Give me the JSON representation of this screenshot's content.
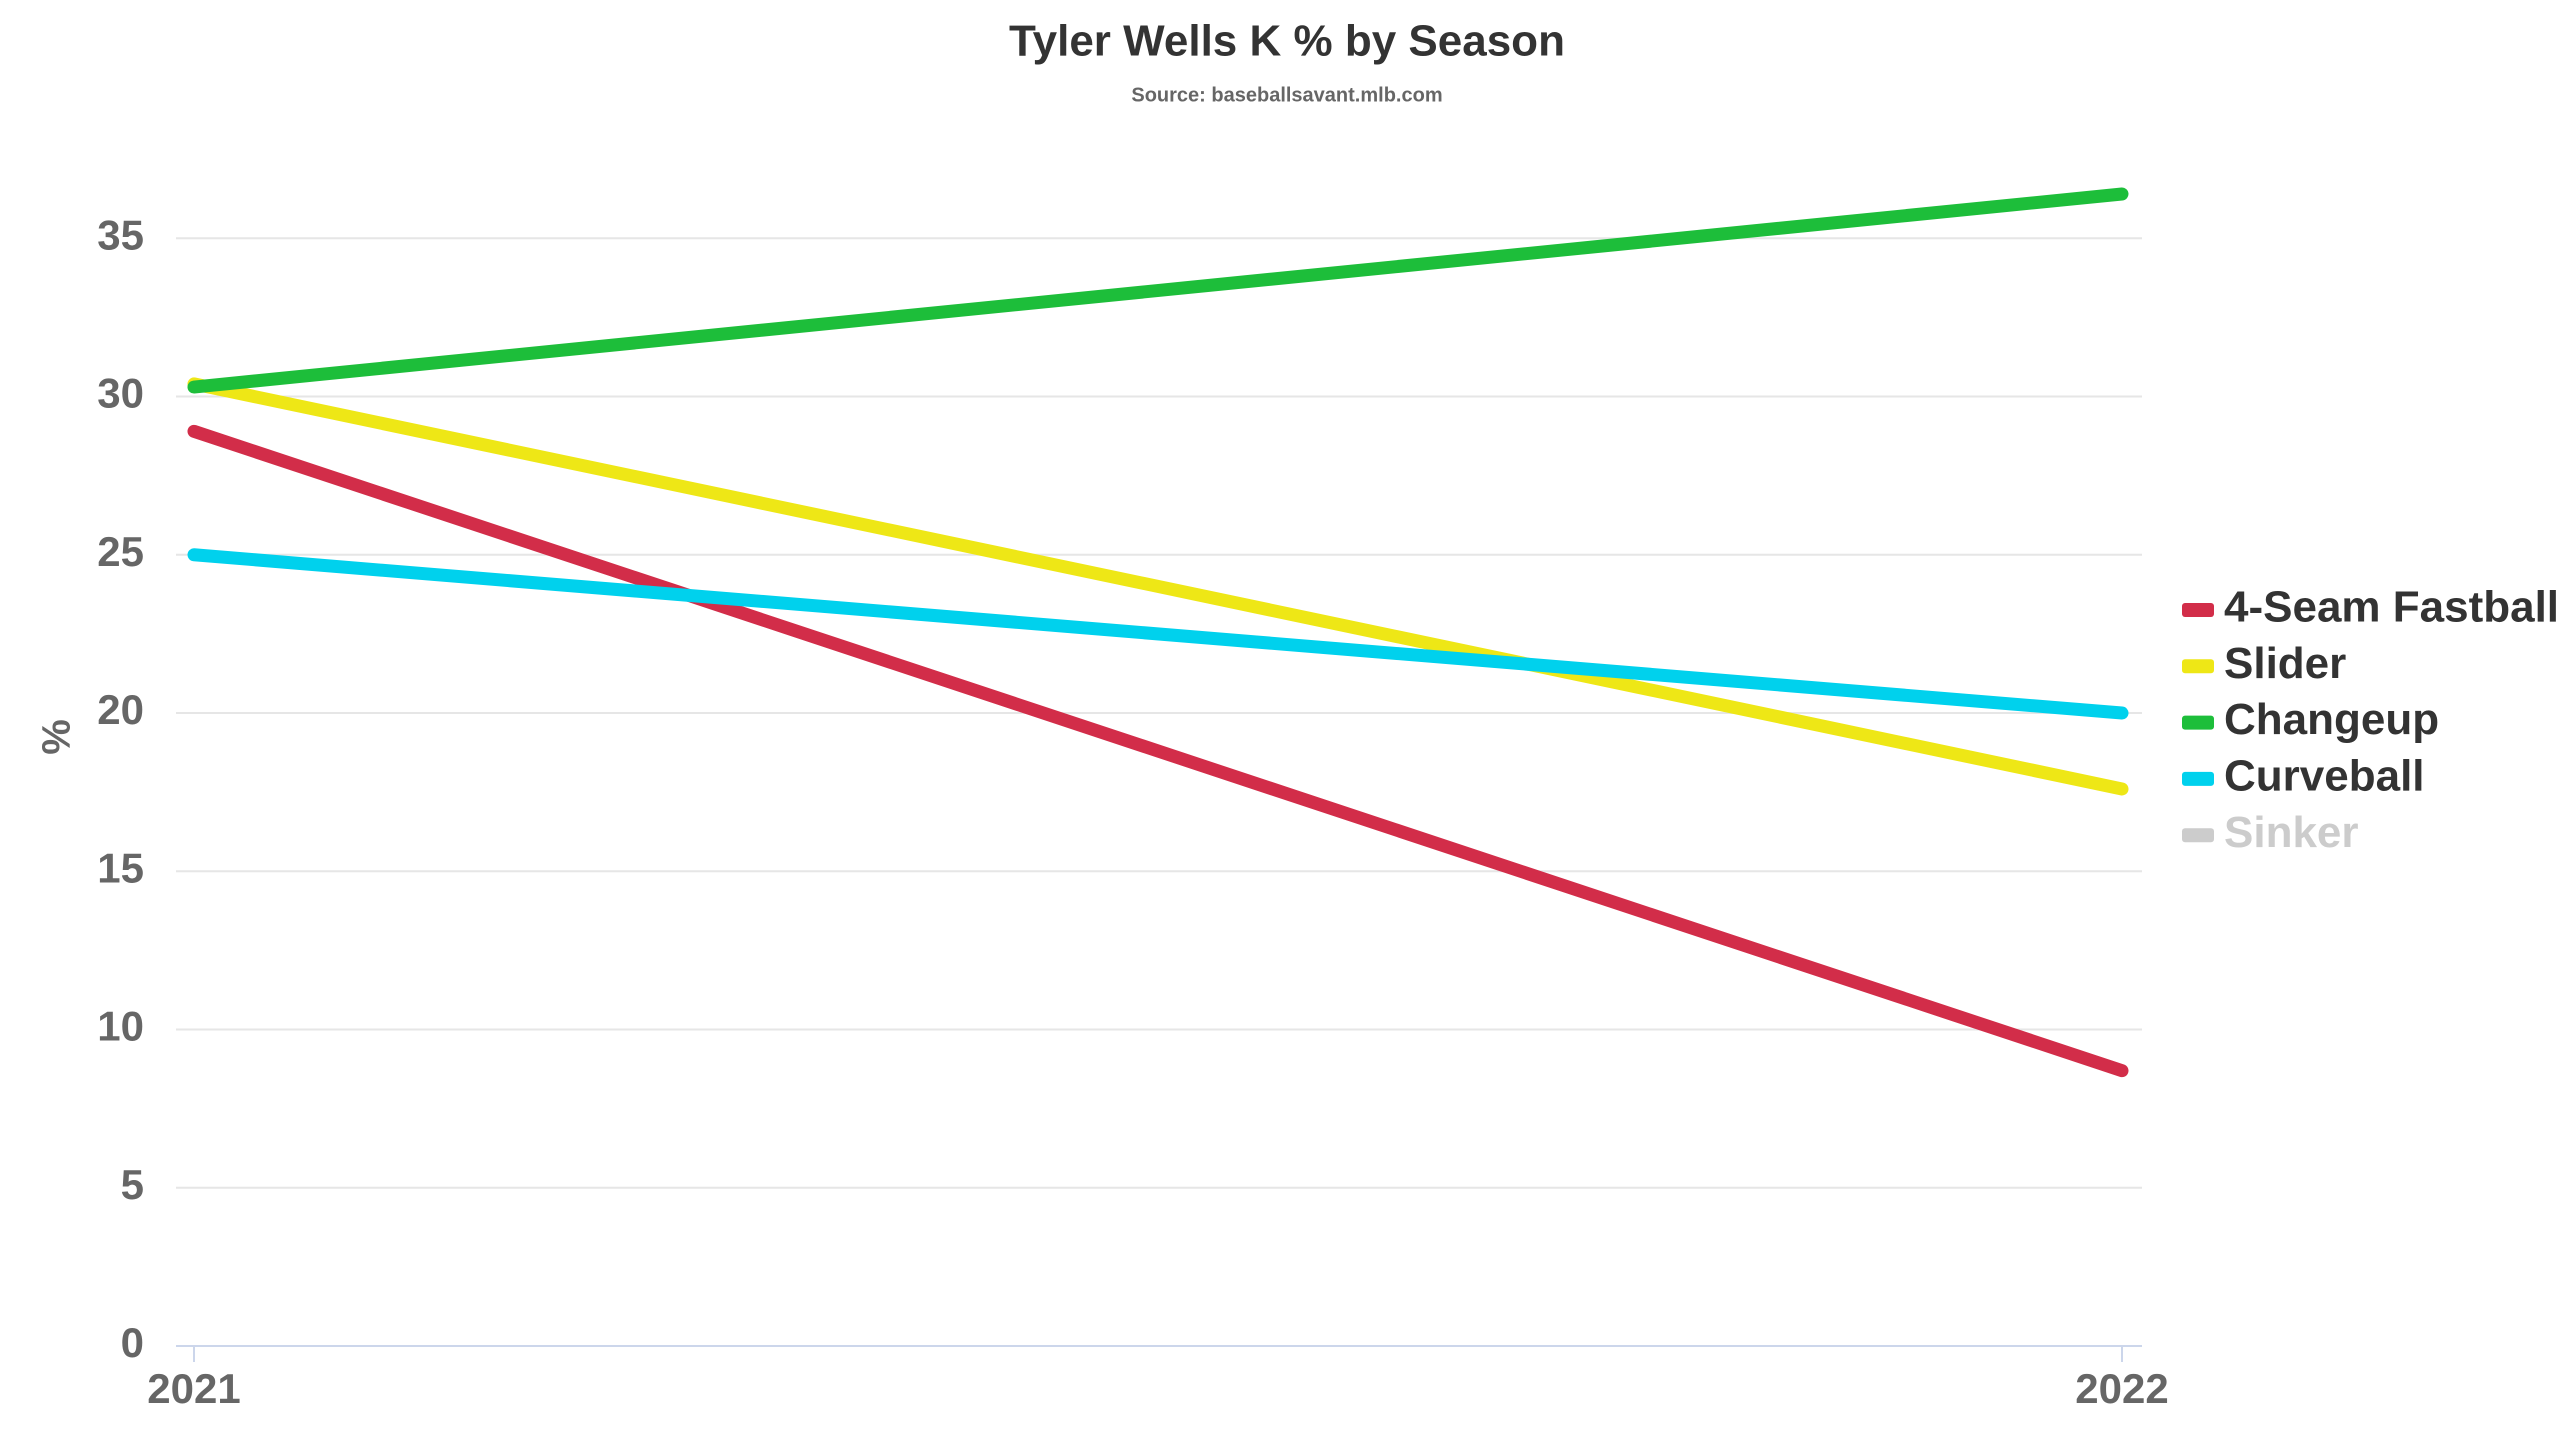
{
  "chart_data": {
    "type": "line",
    "title": "Tyler Wells K % by Season",
    "subtitle": "Source: baseballsavant.mlb.com",
    "y_label": "%",
    "categories": [
      "2021",
      "2022"
    ],
    "series": [
      {
        "name": "4-Seam Fastball",
        "color": "#d22d49",
        "values": [
          28.9,
          8.7
        ]
      },
      {
        "name": "Slider",
        "color": "#eee716",
        "values": [
          30.4,
          17.6
        ]
      },
      {
        "name": "Changeup",
        "color": "#1dbe3a",
        "values": [
          30.3,
          36.4
        ]
      },
      {
        "name": "Curveball",
        "color": "#00d1ed",
        "values": [
          25.0,
          20.0
        ]
      },
      {
        "name": "Sinker",
        "color": "#cccccc",
        "values": [
          null,
          null
        ],
        "visible": false
      }
    ],
    "ylim": [
      0,
      37
    ],
    "yticks": [
      0,
      5,
      10,
      15,
      20,
      25,
      30,
      35
    ],
    "grid": true,
    "legend": "right"
  }
}
